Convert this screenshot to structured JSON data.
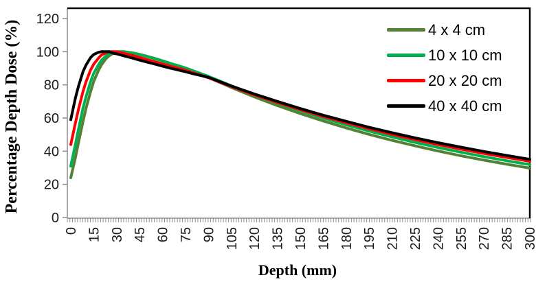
{
  "chart_data": {
    "type": "line",
    "title": "",
    "xlabel": "Depth (mm)",
    "ylabel": "Percentage Depth Dose (%)",
    "xlim": [
      0,
      300
    ],
    "ylim": [
      0,
      120
    ],
    "x_ticks": [
      0,
      15,
      30,
      45,
      60,
      75,
      90,
      105,
      120,
      135,
      150,
      165,
      180,
      195,
      210,
      225,
      240,
      255,
      270,
      285,
      300
    ],
    "y_ticks": [
      0,
      20,
      40,
      60,
      80,
      100,
      120
    ],
    "x_tick_rotation": -90,
    "grid": false,
    "legend_position": "inside-top-right",
    "axis_color": "#8c8c8c",
    "tick_label_color": "#1a1a1a",
    "plot_border_color": "#000000",
    "x": [
      0,
      3,
      5,
      8,
      10,
      13,
      15,
      18,
      20,
      23,
      25,
      28,
      30,
      35,
      40,
      45,
      50,
      55,
      60,
      65,
      70,
      75,
      80,
      85,
      90,
      105,
      120,
      135,
      150,
      165,
      180,
      195,
      210,
      225,
      240,
      255,
      270,
      285,
      300
    ],
    "series": [
      {
        "name": "4 x 4 cm",
        "color": "#548235",
        "values": [
          24,
          36,
          45,
          58,
          66,
          76,
          82,
          88.5,
          92,
          95.8,
          97.5,
          99.2,
          99.9,
          100,
          99.4,
          98.4,
          97.2,
          95.9,
          94.5,
          93,
          91.4,
          89.8,
          88,
          86.2,
          84.4,
          78.4,
          72.7,
          67.5,
          62.7,
          58.2,
          54,
          50.1,
          46.5,
          43.2,
          40.1,
          37.2,
          34.6,
          32.1,
          29.8
        ]
      },
      {
        "name": "10 x 10 cm",
        "color": "#00b050",
        "values": [
          31,
          44,
          53,
          66,
          73,
          82,
          87,
          92,
          94.8,
          97.5,
          98.7,
          99.7,
          100,
          100,
          99.2,
          98.2,
          97,
          95.7,
          94.4,
          93,
          91.6,
          90.2,
          88.5,
          86.8,
          85.1,
          79.4,
          74,
          69,
          64.4,
          60,
          55.9,
          52.1,
          48.6,
          45.3,
          42.2,
          39.4,
          36.7,
          34.2,
          31.9
        ]
      },
      {
        "name": "20 x 20 cm",
        "color": "#ff0000",
        "values": [
          44,
          57,
          65,
          76,
          82,
          89,
          92.5,
          96,
          98,
          99.4,
          100,
          100,
          100,
          99,
          97.8,
          96.5,
          95.2,
          93.9,
          92.6,
          91.3,
          90.1,
          88.8,
          87.3,
          85.8,
          84.3,
          79,
          74,
          69.4,
          65,
          60.9,
          57.1,
          53.5,
          50.1,
          47,
          44,
          41.2,
          38.6,
          36.2,
          33.9
        ]
      },
      {
        "name": "40 x 40 cm",
        "color": "#000000",
        "values": [
          59,
          72,
          79,
          88,
          92,
          96.5,
          98.3,
          99.6,
          100,
          100,
          100,
          99,
          98.7,
          97.4,
          96.2,
          94.9,
          93.7,
          92.5,
          91.3,
          90.1,
          89,
          87.9,
          86.7,
          85.6,
          84.5,
          79.3,
          74.5,
          70,
          65.7,
          61.7,
          58,
          54.4,
          51.1,
          48,
          45.1,
          42.4,
          39.8,
          37.4,
          35.1
        ]
      }
    ]
  }
}
